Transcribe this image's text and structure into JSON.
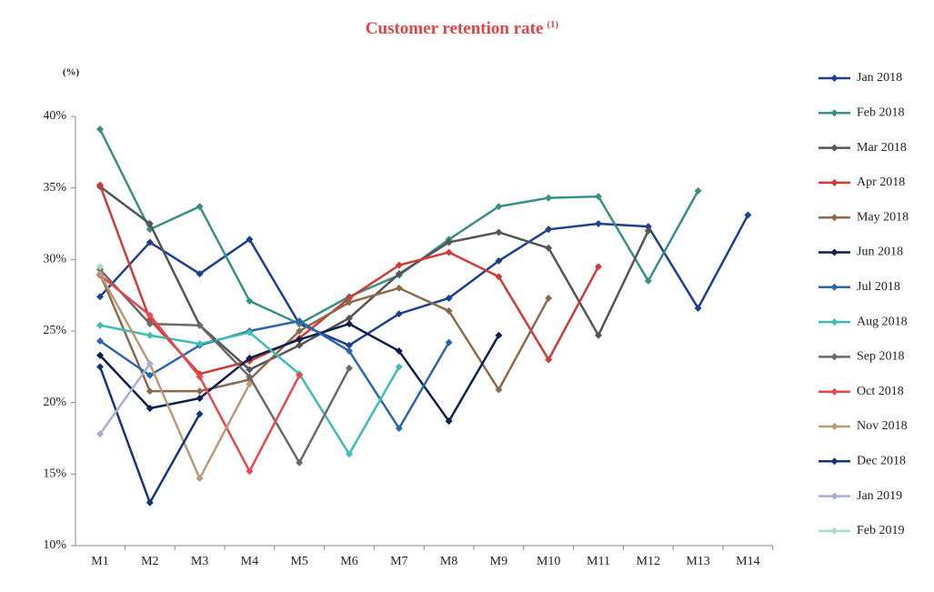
{
  "chart_data": {
    "type": "line",
    "title": "Customer retention rate",
    "title_note": "(1)",
    "y_unit": "(%)",
    "categories": [
      "M1",
      "M2",
      "M3",
      "M4",
      "M5",
      "M6",
      "M7",
      "M8",
      "M9",
      "M10",
      "M11",
      "M12",
      "M13",
      "M14"
    ],
    "ylim": [
      10,
      40
    ],
    "yticks": [
      {
        "value": 10,
        "label": "10%"
      },
      {
        "value": 15,
        "label": "15%"
      },
      {
        "value": 20,
        "label": "20%"
      },
      {
        "value": 25,
        "label": "25%"
      },
      {
        "value": 30,
        "label": "30%"
      },
      {
        "value": 35,
        "label": "35%"
      },
      {
        "value": 40,
        "label": "40%"
      }
    ],
    "legend": "right",
    "series": [
      {
        "name": "Jan 2018",
        "color": "#1f3f8f",
        "values": [
          27.4,
          31.2,
          29.0,
          31.4,
          25.5,
          24.0,
          26.2,
          27.3,
          29.9,
          32.1,
          32.5,
          32.3,
          26.6,
          33.1
        ]
      },
      {
        "name": "Feb 2018",
        "color": "#3a8f85",
        "values": [
          39.1,
          32.1,
          33.7,
          27.1,
          25.5,
          27.4,
          28.9,
          31.4,
          33.7,
          34.3,
          34.4,
          28.5,
          34.8,
          null
        ]
      },
      {
        "name": "Mar 2018",
        "color": "#555555",
        "values": [
          35.1,
          32.5,
          25.4,
          22.3,
          24.0,
          25.9,
          29.0,
          31.2,
          31.9,
          30.8,
          24.7,
          32.0,
          null,
          null
        ]
      },
      {
        "name": "Apr 2018",
        "color": "#d03a3a",
        "values": [
          35.2,
          25.8,
          22.0,
          22.9,
          24.5,
          27.3,
          29.6,
          30.5,
          28.8,
          23.0,
          29.5,
          null,
          null,
          null
        ]
      },
      {
        "name": "May 2018",
        "color": "#8b6a4f",
        "values": [
          29.0,
          20.8,
          20.8,
          21.6,
          25.0,
          27.0,
          28.0,
          26.4,
          20.9,
          27.3,
          null,
          null,
          null,
          null
        ]
      },
      {
        "name": "Jun 2018",
        "color": "#0d1f4f",
        "values": [
          23.3,
          19.6,
          20.3,
          23.1,
          24.4,
          25.5,
          23.6,
          18.7,
          24.7,
          null,
          null,
          null,
          null,
          null
        ]
      },
      {
        "name": "Jul 2018",
        "color": "#2e67a8",
        "values": [
          24.3,
          21.9,
          24.0,
          25.0,
          25.7,
          23.6,
          18.2,
          24.2,
          null,
          null,
          null,
          null,
          null,
          null
        ]
      },
      {
        "name": "Aug 2018",
        "color": "#3fbdb0",
        "values": [
          25.4,
          24.7,
          24.1,
          24.9,
          22.0,
          16.4,
          22.5,
          null,
          null,
          null,
          null,
          null,
          null,
          null
        ]
      },
      {
        "name": "Sep 2018",
        "color": "#6a6a6a",
        "values": [
          29.3,
          25.5,
          25.4,
          21.8,
          15.8,
          22.4,
          null,
          null,
          null,
          null,
          null,
          null,
          null,
          null
        ]
      },
      {
        "name": "Oct 2018",
        "color": "#e8474c",
        "values": [
          28.9,
          26.1,
          21.8,
          15.2,
          21.9,
          null,
          null,
          null,
          null,
          null,
          null,
          null,
          null,
          null
        ]
      },
      {
        "name": "Nov 2018",
        "color": "#b89a7a",
        "values": [
          29.0,
          22.7,
          14.7,
          21.3,
          null,
          null,
          null,
          null,
          null,
          null,
          null,
          null,
          null,
          null
        ]
      },
      {
        "name": "Dec 2018",
        "color": "#17347a",
        "values": [
          22.5,
          13.0,
          19.2,
          null,
          null,
          null,
          null,
          null,
          null,
          null,
          null,
          null,
          null,
          null
        ]
      },
      {
        "name": "Jan 2019",
        "color": "#a8aed6",
        "values": [
          17.8,
          22.7,
          null,
          null,
          null,
          null,
          null,
          null,
          null,
          null,
          null,
          null,
          null,
          null
        ]
      },
      {
        "name": "Feb 2019",
        "color": "#a8dcc8",
        "values": [
          29.5,
          null,
          null,
          null,
          null,
          null,
          null,
          null,
          null,
          null,
          null,
          null,
          null,
          null
        ]
      }
    ]
  }
}
